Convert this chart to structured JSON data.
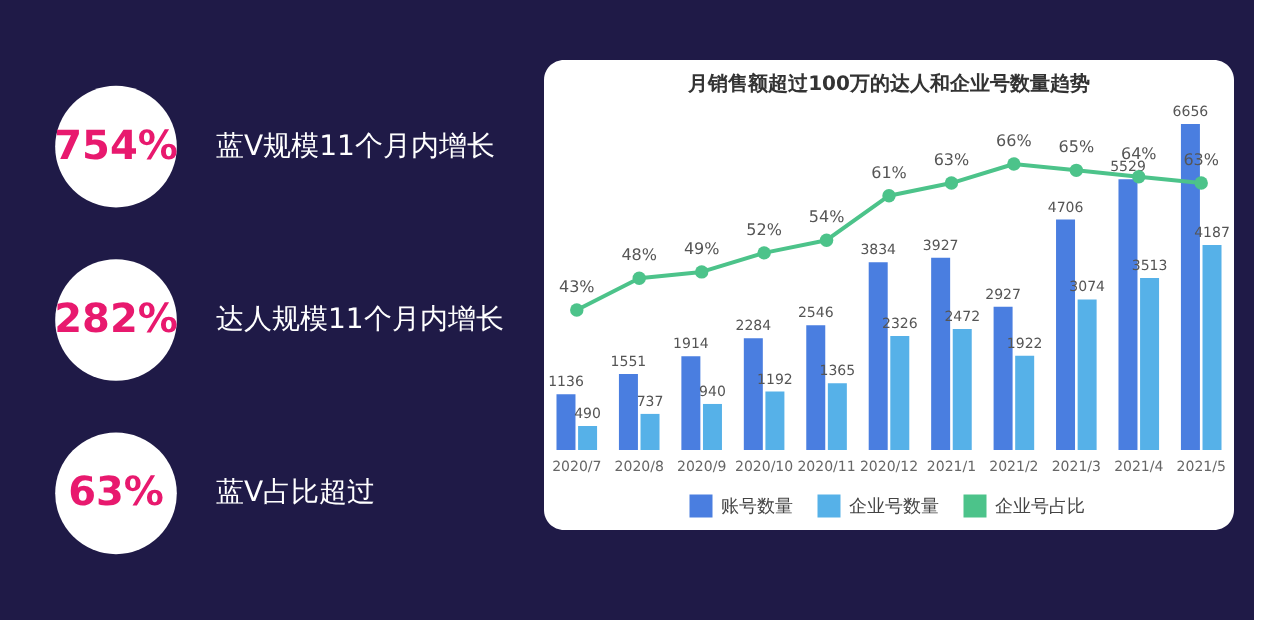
{
  "chart_data": [
    {
      "type": "other",
      "annotations": [
        "754%",
        "蓝V规模11个月内增长",
        "282%",
        "达人规模11个月内增长",
        "63%",
        "蓝V占比超过"
      ]
    },
    {
      "type": "bar",
      "title": "月销售额超过100万的达人和企业号数量趋势",
      "categories": [
        "2020/7",
        "2020/8",
        "2020/9",
        "2020/10",
        "2020/11",
        "2020/12",
        "2021/1",
        "2021/2",
        "2021/3",
        "2021/4",
        "2021/5"
      ],
      "series": [
        {
          "name": "账号数量",
          "color": "#4a7ee0",
          "values": [
            1136,
            1551,
            1914,
            2284,
            2546,
            3834,
            3927,
            2927,
            4706,
            5529,
            6656
          ]
        },
        {
          "name": "企业号数量",
          "color": "#56b1e8",
          "values": [
            490,
            737,
            940,
            1192,
            1365,
            2326,
            2472,
            1922,
            3074,
            3513,
            4187
          ]
        },
        {
          "name": "企业号占比",
          "color": "#4cc38a",
          "type": "line",
          "axis": "y2",
          "values": [
            43,
            48,
            49,
            52,
            54,
            61,
            63,
            66,
            65,
            64,
            63
          ],
          "value_labels": [
            "43%",
            "48%",
            "49%",
            "52%",
            "54%",
            "61%",
            "63%",
            "66%",
            "65%",
            "64%",
            "63%"
          ]
        }
      ],
      "data_labels": true,
      "legend": "bottom",
      "tick_labels": "x",
      "marker": "circle"
    }
  ]
}
